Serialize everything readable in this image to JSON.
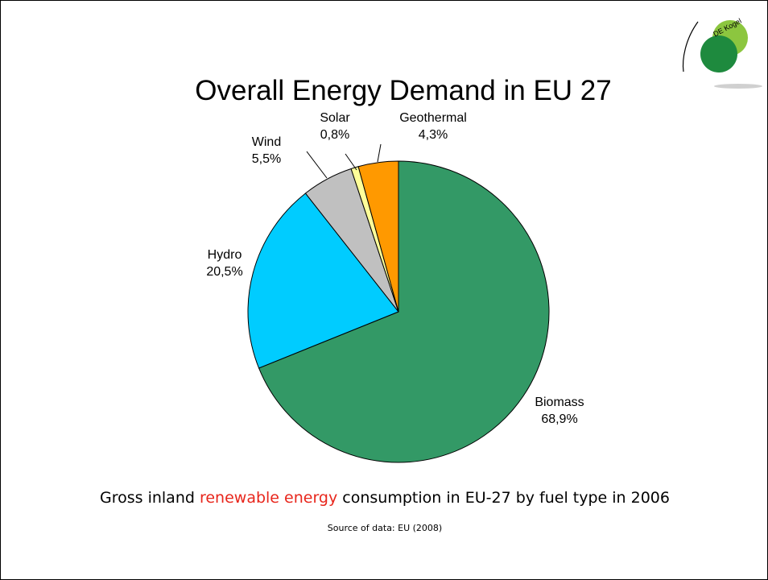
{
  "slide": {
    "caption_pre": "Gross inland ",
    "caption_highlight": "renewable energy",
    "caption_post": " consumption in EU-27 by fuel type in 2006",
    "source": "Source of data: EU (2008)",
    "logo_text": "DE Kogel"
  },
  "colors": {
    "highlight": "#e8261c",
    "logo_green": "#1e8a3e",
    "logo_lime": "#8cc63f"
  },
  "chart_data": {
    "type": "pie",
    "title": "Overall Energy Demand in EU 27",
    "start": "12-o'clock",
    "direction": "clockwise",
    "slices": [
      {
        "name": "Biomass",
        "value": 68.9,
        "label": "68,9%",
        "color": "#339966"
      },
      {
        "name": "Hydro",
        "value": 20.5,
        "label": "20,5%",
        "color": "#00ccff"
      },
      {
        "name": "Wind",
        "value": 5.5,
        "label": "5,5%",
        "color": "#c0c0c0"
      },
      {
        "name": "Solar",
        "value": 0.8,
        "label": "0,8%",
        "color": "#ffff99"
      },
      {
        "name": "Geothermal",
        "value": 4.3,
        "label": "4,3%",
        "color": "#ff9900"
      }
    ]
  }
}
